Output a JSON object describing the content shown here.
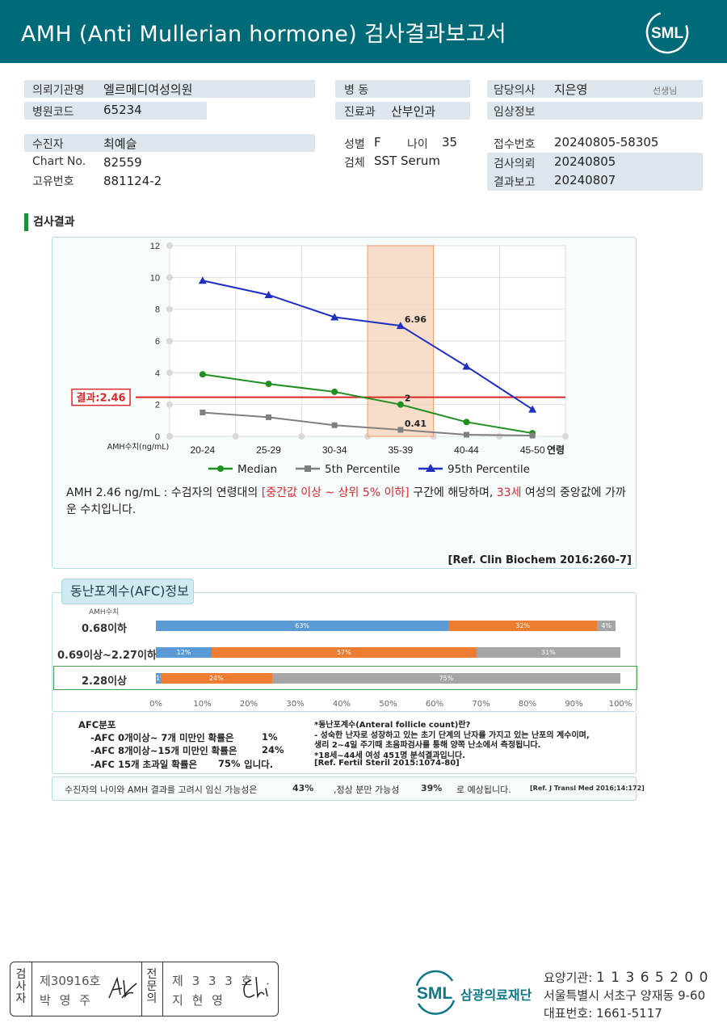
{
  "header": {
    "title": "AMH (Anti Mullerian hormone) 검사결과보고서",
    "logo_text": "SML"
  },
  "patient_info": {
    "institution_label": "의뢰기관명",
    "institution_value": "엘르메디여성의원",
    "hospital_code_label": "병원코드",
    "hospital_code_value": "65234",
    "ward_label": "병 동",
    "ward_value": "",
    "department_label": "진료과",
    "department_value": "산부인과",
    "doctor_label": "담당의사",
    "doctor_value": "지은영",
    "doctor_suffix": "선생님",
    "clinical_info_label": "임상정보",
    "clinical_info_value": "",
    "patient_label": "수진자",
    "patient_value": "최예슬",
    "chart_no_label": "Chart No.",
    "chart_no_value": "82559",
    "unique_no_label": "고유번호",
    "unique_no_value": "881124-2",
    "sex_label": "성별",
    "sex_value": "F",
    "age_label": "나이",
    "age_value": "35",
    "specimen_label": "검체",
    "specimen_value": "SST Serum",
    "receipt_no_label": "접수번호",
    "receipt_no_value": "20240805-58305",
    "request_date_label": "검사의뢰",
    "request_date_value": "20240805",
    "report_date_label": "결과보고",
    "report_date_value": "20240807"
  },
  "results_section": {
    "title": "검사결과"
  },
  "chart_data": {
    "type": "line",
    "categories": [
      "20-24",
      "25-29",
      "30-34",
      "35-39",
      "40-44",
      "45-50"
    ],
    "series": [
      {
        "name": "Median",
        "values": [
          3.9,
          3.3,
          2.8,
          2.0,
          0.9,
          0.2
        ],
        "color": "#1f8f1f"
      },
      {
        "name": "5th Percentile",
        "values": [
          1.5,
          1.2,
          0.7,
          0.41,
          0.1,
          0.05
        ],
        "color": "#7f7f7f"
      },
      {
        "name": "95th Percentile",
        "values": [
          9.8,
          8.9,
          7.5,
          6.96,
          4.4,
          1.7
        ],
        "color": "#1f2fbf"
      }
    ],
    "data_labels": [
      {
        "series": 2,
        "index": 3,
        "text": "6.96"
      },
      {
        "series": 0,
        "index": 3,
        "text": "2"
      },
      {
        "series": 1,
        "index": 3,
        "text": "0.41"
      }
    ],
    "highlight_category": "35-39",
    "result_line": {
      "value": 2.46,
      "label": "결과:2.46",
      "color": "#d8282a"
    },
    "ylabel": "AMH수치(ng/mL)",
    "xlabel": "연령",
    "ylim": [
      0,
      12
    ],
    "yticks": [
      0,
      2,
      4,
      6,
      8,
      10,
      12
    ],
    "grid": true,
    "legend_position": "bottom"
  },
  "interpretation": {
    "part1": "AMH  2.46 ng/mL : 수검자의 연령대의 ",
    "part2": "[중간값 이상 ~ 상위 5% 이하]",
    "part3": "  구간에 해당하며, ",
    "part4": "33세",
    "part5": " 여성의 중앙값에 가까운 수치입니다.",
    "reference": "[Ref. Clin Biochem 2016:260-7]"
  },
  "afc": {
    "tab_title": "동난포계수(AFC)정보",
    "amh_header": "AMH수치",
    "rows": [
      {
        "label": "0.68이하",
        "segments": [
          {
            "pct": 63,
            "text": "63%",
            "color": "blue"
          },
          {
            "pct": 32,
            "text": "32%",
            "color": "orange"
          },
          {
            "pct": 4,
            "text": "4%",
            "color": "gray"
          }
        ]
      },
      {
        "label": "0.69이상~2.27이하",
        "segments": [
          {
            "pct": 12,
            "text": "12%",
            "color": "blue"
          },
          {
            "pct": 57,
            "text": "57%",
            "color": "orange"
          },
          {
            "pct": 31,
            "text": "31%",
            "color": "gray"
          }
        ]
      },
      {
        "label": "2.28이상",
        "segments": [
          {
            "pct": 1,
            "text": "1%",
            "color": "blue"
          },
          {
            "pct": 24,
            "text": "24%",
            "color": "orange"
          },
          {
            "pct": 75,
            "text": "75%",
            "color": "gray"
          }
        ]
      }
    ],
    "highlight_row": 2,
    "axis_ticks": [
      "0%",
      "10%",
      "20%",
      "30%",
      "40%",
      "50%",
      "60%",
      "70%",
      "80%",
      "90%",
      "100%"
    ],
    "dist_title": "AFC분포",
    "dist_1a": "-AFC  0개이상~ 7개 미만인 확률은",
    "dist_1b": "1%",
    "dist_2a": "-AFC  8개이상~15개 미만인 확률은",
    "dist_2b": "24%",
    "dist_3a": "-AFC  15개 초과일 확률은",
    "dist_3b": "75%",
    "dist_3c": "입니다.",
    "def_1": "*동난포계수(Anteral follicle count)란?",
    "def_2": "- 성숙한 난자로 성장하고 있는 초기 단계의 난자를 가지고 있는 난포의 계수이며,",
    "def_3": "  생리 2~4일 주기때 초음파검사를 통해 양쪽 난소에서 측정됩니다.",
    "def_4": "*18세~44세 여성 451명 분석결과입니다.",
    "def_5": "[Ref. Fertil Steril 2015:1074-80]",
    "summary_1": "수진자의 나이와 AMH 결과를 고려시 임신 가능성은",
    "summary_pregnancy": "43%",
    "summary_2": ",정상 분만 가능성",
    "summary_delivery": "39%",
    "summary_3": "로 예상됩니다.",
    "summary_ref": "[Ref. J Transl Med 2016;14:172]"
  },
  "signatures": {
    "box1_label": "검사자",
    "box1_number": "제30916호",
    "box1_name": "박 영 주",
    "box2_label": "전문의",
    "box2_number": "제 3 3 3 호",
    "box2_name": "지 현 영"
  },
  "footer": {
    "logo_text": "SML",
    "org_name": "삼광의료재단",
    "code_label": "요양기관:",
    "code_value": "1 1 3 6 5 2 0 0",
    "address": "서울특별시 서초구 양재동 9-60",
    "phone_label": "대표번호:",
    "phone_value": "1661-5117"
  }
}
